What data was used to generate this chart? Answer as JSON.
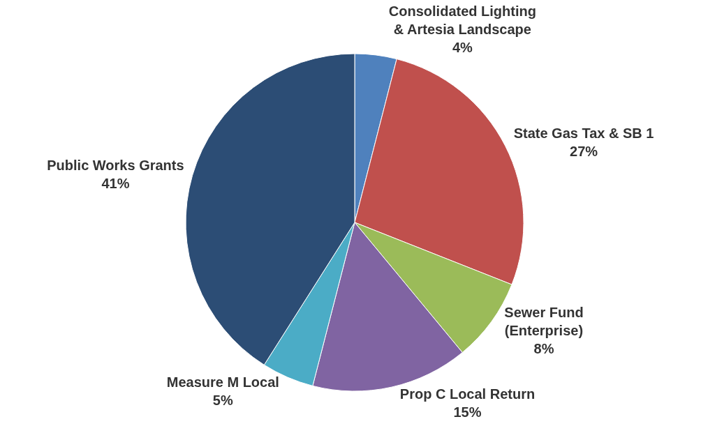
{
  "chart_data": {
    "type": "pie",
    "categories": [
      "Consolidated Lighting & Artesia Landscape",
      "State Gas Tax & SB 1",
      "Sewer Fund (Enterprise)",
      "Prop C Local Return",
      "Measure M Local",
      "Public Works Grants"
    ],
    "values": [
      4,
      27,
      8,
      15,
      5,
      41
    ],
    "value_labels": [
      "4%",
      "27%",
      "8%",
      "15%",
      "5%",
      "41%"
    ],
    "colors": [
      "#4f81bd",
      "#c0504d",
      "#9bbb59",
      "#8064a2",
      "#4bacc6",
      "#2c4d75"
    ],
    "legend": false
  }
}
